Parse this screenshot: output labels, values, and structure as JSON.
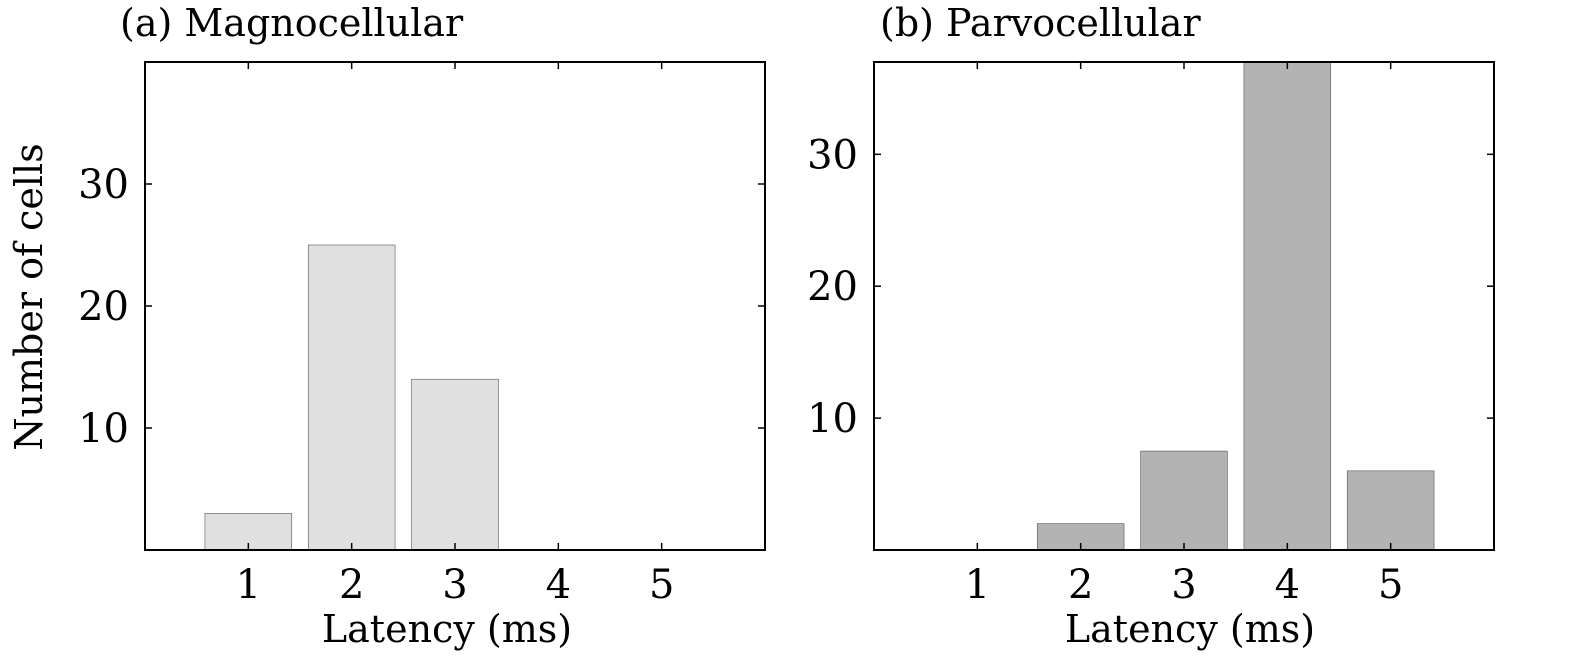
{
  "figure": {
    "ylabel": "Number of cells"
  },
  "chart_data": [
    {
      "type": "bar",
      "title": "(a) Magnocellular",
      "xlabel": "Latency (ms)",
      "ylabel": "Number of cells",
      "categories": [
        "1",
        "2",
        "3",
        "4",
        "5"
      ],
      "x": [
        1,
        2,
        3,
        4,
        5
      ],
      "values": [
        3,
        25,
        14,
        0,
        0
      ],
      "xlim": [
        0,
        6
      ],
      "ylim": [
        0,
        40
      ],
      "yticks": [
        10,
        20,
        30
      ],
      "grid": false,
      "bar_color": "#e0e0e0"
    },
    {
      "type": "bar",
      "title": "(b) Parvocellular",
      "xlabel": "Latency (ms)",
      "ylabel": "",
      "categories": [
        "1",
        "2",
        "3",
        "4",
        "5"
      ],
      "x": [
        1,
        2,
        3,
        4,
        5
      ],
      "values": [
        0,
        2,
        7.5,
        37,
        6
      ],
      "xlim": [
        0,
        6
      ],
      "ylim": [
        0,
        37
      ],
      "yticks": [
        10,
        20,
        30
      ],
      "grid": false,
      "bar_color": "#b3b3b3"
    }
  ]
}
